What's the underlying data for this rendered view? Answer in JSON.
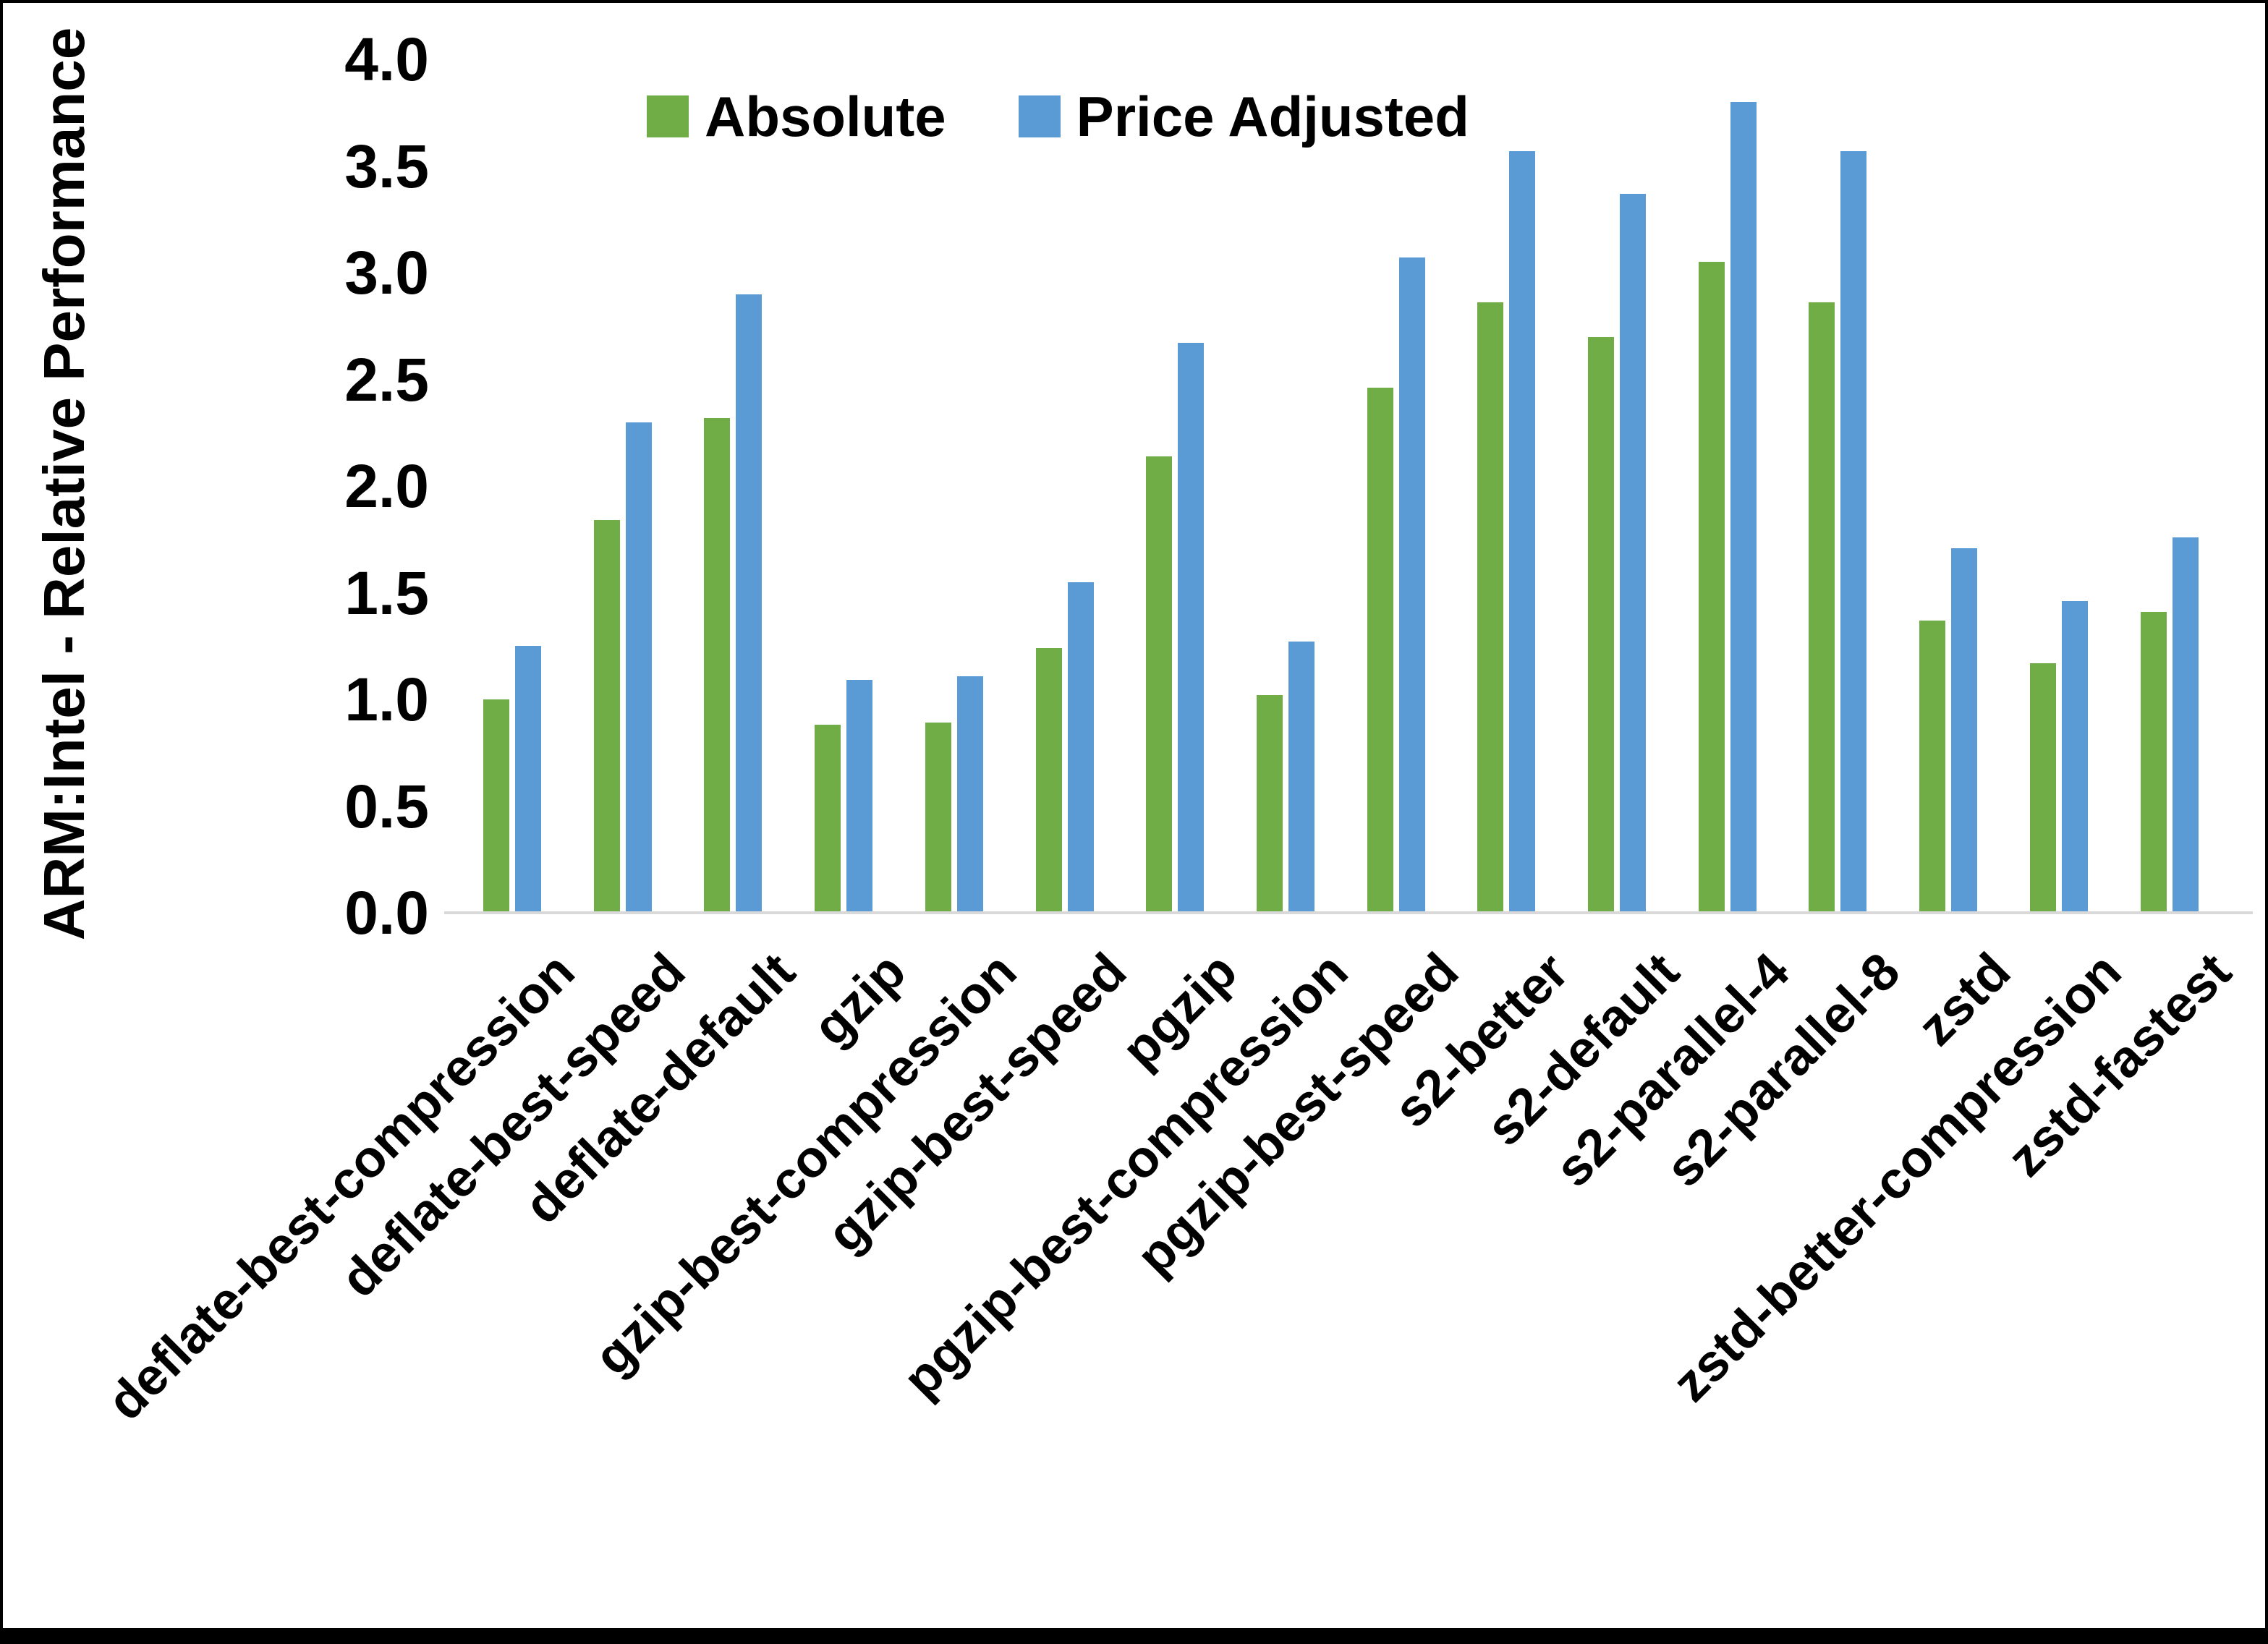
{
  "chart_data": {
    "type": "bar",
    "title": "",
    "xlabel": "",
    "ylabel": "ARM:Intel - Relative Performance",
    "ylim": [
      0.0,
      4.0
    ],
    "ytick_step": 0.5,
    "ytick_labels": [
      "0.0",
      "0.5",
      "1.0",
      "1.5",
      "2.0",
      "2.5",
      "3.0",
      "3.5",
      "4.0"
    ],
    "grid": false,
    "legend_position": "top-center",
    "categories": [
      "deflate-best-compression",
      "deflate-best-speed",
      "deflate-default",
      "gzip",
      "gzip-best-compression",
      "gzip-best-speed",
      "pgzip",
      "pgzip-best-compression",
      "pgzip-best-speed",
      "s2-better",
      "s2-default",
      "s2-parallel-4",
      "s2-parallel-8",
      "zstd",
      "zstd-better-compression",
      "zstd-fastest"
    ],
    "series": [
      {
        "name": "Absolute",
        "color": "#70AD47",
        "values": [
          1.0,
          1.84,
          2.32,
          0.88,
          0.89,
          1.24,
          2.14,
          1.02,
          2.46,
          2.86,
          2.7,
          3.05,
          2.86,
          1.37,
          1.17,
          1.41
        ]
      },
      {
        "name": "Price Adjusted",
        "color": "#5B9BD5",
        "values": [
          1.25,
          2.3,
          2.9,
          1.09,
          1.11,
          1.55,
          2.67,
          1.27,
          3.07,
          3.57,
          3.37,
          3.8,
          3.57,
          1.71,
          1.46,
          1.76
        ]
      }
    ],
    "colors": {
      "axis_line": "#D9D9D9",
      "text": "#000000",
      "background": "#FFFFFF",
      "frame": "#000000"
    }
  }
}
